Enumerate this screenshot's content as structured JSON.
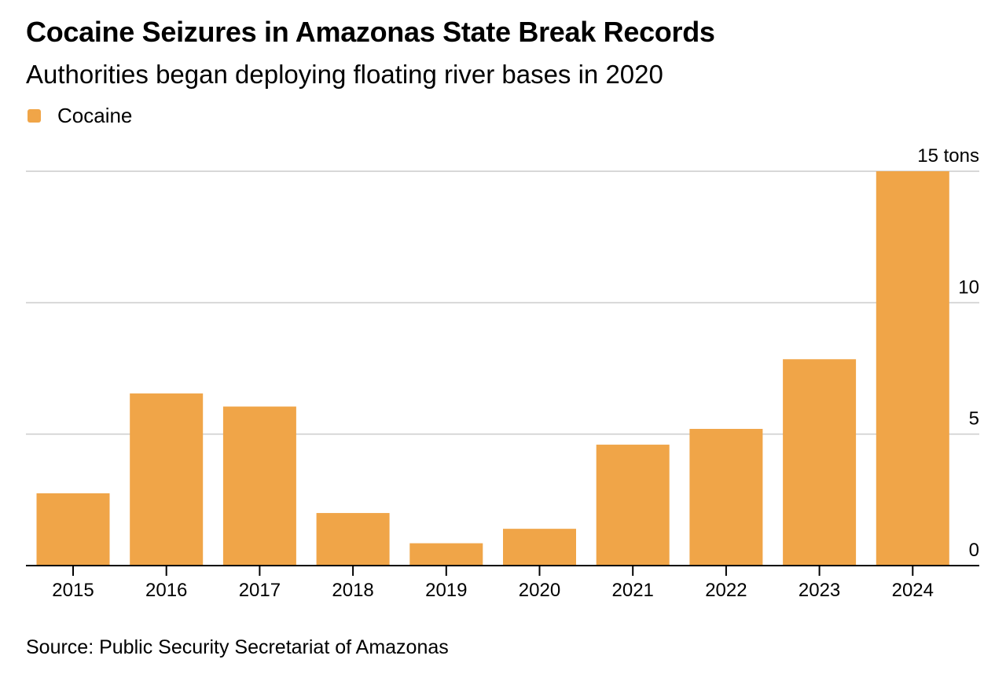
{
  "header": {
    "title": "Cocaine Seizures in Amazonas State Break Records",
    "subtitle": "Authorities began deploying floating river bases in 2020"
  },
  "legend": {
    "items": [
      {
        "label": "Cocaine",
        "color": "#F0A548"
      }
    ]
  },
  "footer": {
    "source": "Source: Public Security Secretariat of Amazonas"
  },
  "chart_data": {
    "type": "bar",
    "title": "Cocaine Seizures in Amazonas State Break Records",
    "subtitle": "Authorities began deploying floating river bases in 2020",
    "xlabel": "",
    "ylabel": "tons",
    "categories": [
      "2015",
      "2016",
      "2017",
      "2018",
      "2019",
      "2020",
      "2021",
      "2022",
      "2023",
      "2024"
    ],
    "series": [
      {
        "name": "Cocaine",
        "color": "#F0A548",
        "values": [
          2.75,
          6.55,
          6.05,
          2.0,
          0.85,
          1.4,
          4.6,
          5.2,
          7.85,
          15.0
        ]
      }
    ],
    "ylim": [
      0,
      15
    ],
    "yticks": [
      0,
      5,
      10,
      15
    ],
    "ytick_labels": [
      "0",
      "5",
      "10",
      "15 tons"
    ],
    "y_axis_side": "right",
    "grid": true,
    "legend_position": "top-left",
    "colors": {
      "bar": "#F0A548",
      "grid": "#cccccc",
      "axis": "#000000"
    }
  }
}
